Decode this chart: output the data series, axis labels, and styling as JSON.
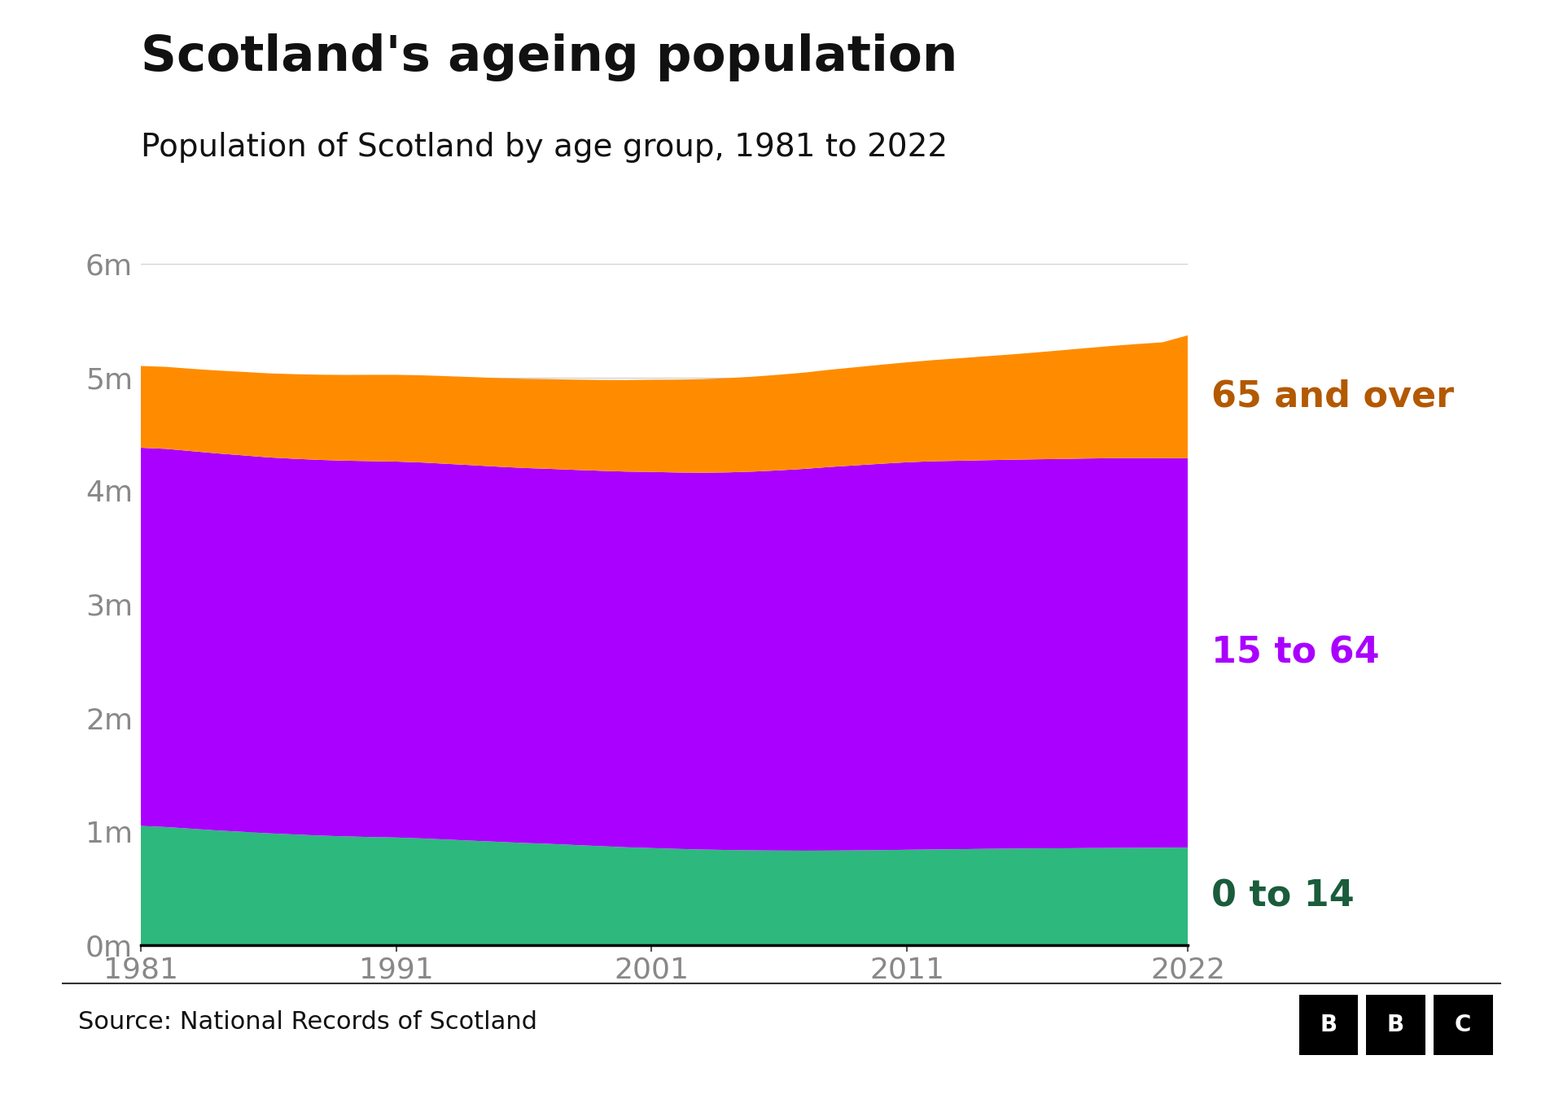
{
  "title": "Scotland's ageing population",
  "subtitle": "Population of Scotland by age group, 1981 to 2022",
  "source": "Source: National Records of Scotland",
  "years": [
    1981,
    1982,
    1983,
    1984,
    1985,
    1986,
    1987,
    1988,
    1989,
    1990,
    1991,
    1992,
    1993,
    1994,
    1995,
    1996,
    1997,
    1998,
    1999,
    2000,
    2001,
    2002,
    2003,
    2004,
    2005,
    2006,
    2007,
    2008,
    2009,
    2010,
    2011,
    2012,
    2013,
    2014,
    2015,
    2016,
    2017,
    2018,
    2019,
    2020,
    2021,
    2022
  ],
  "age_0_14": [
    1050000,
    1040000,
    1025000,
    1010000,
    998000,
    985000,
    975000,
    965000,
    958000,
    952000,
    948000,
    940000,
    930000,
    920000,
    910000,
    900000,
    892000,
    882000,
    872000,
    862000,
    855000,
    848000,
    842000,
    838000,
    835000,
    833000,
    832000,
    833000,
    835000,
    837000,
    840000,
    843000,
    845000,
    848000,
    850000,
    852000,
    853000,
    855000,
    856000,
    857000,
    858000,
    860000
  ],
  "age_15_64": [
    3330000,
    3330000,
    3325000,
    3320000,
    3315000,
    3310000,
    3308000,
    3308000,
    3308000,
    3310000,
    3310000,
    3310000,
    3308000,
    3306000,
    3303000,
    3302000,
    3302000,
    3303000,
    3305000,
    3308000,
    3312000,
    3314000,
    3318000,
    3325000,
    3335000,
    3348000,
    3362000,
    3378000,
    3390000,
    3402000,
    3412000,
    3418000,
    3420000,
    3422000,
    3424000,
    3426000,
    3428000,
    3430000,
    3432000,
    3432000,
    3430000,
    3428000
  ],
  "age_65_over": [
    720000,
    722000,
    725000,
    730000,
    735000,
    740000,
    745000,
    750000,
    755000,
    760000,
    764000,
    768000,
    772000,
    776000,
    780000,
    785000,
    790000,
    795000,
    800000,
    806000,
    812000,
    818000,
    824000,
    830000,
    836000,
    842000,
    848000,
    856000,
    864000,
    872000,
    880000,
    890000,
    902000,
    914000,
    926000,
    940000,
    956000,
    972000,
    988000,
    1004000,
    1020000,
    1082000
  ],
  "color_0_14": "#2db87d",
  "color_15_64": "#aa00ff",
  "color_65_over": "#ff8c00",
  "label_0_14": "0 to 14",
  "label_15_64": "15 to 64",
  "label_65_over": "65 and over",
  "label_color_0_14": "#1a5c3b",
  "label_color_15_64": "#aa00ff",
  "label_color_65_over": "#b35900",
  "ylim": [
    0,
    6000000
  ],
  "yticks": [
    0,
    1000000,
    2000000,
    3000000,
    4000000,
    5000000,
    6000000
  ],
  "ytick_labels": [
    "0m",
    "1m",
    "2m",
    "3m",
    "4m",
    "5m",
    "6m"
  ],
  "xticks": [
    1981,
    1991,
    2001,
    2011,
    2022
  ],
  "background_color": "#ffffff",
  "title_fontsize": 44,
  "subtitle_fontsize": 28,
  "label_fontsize": 32,
  "tick_fontsize": 26,
  "source_fontsize": 22
}
